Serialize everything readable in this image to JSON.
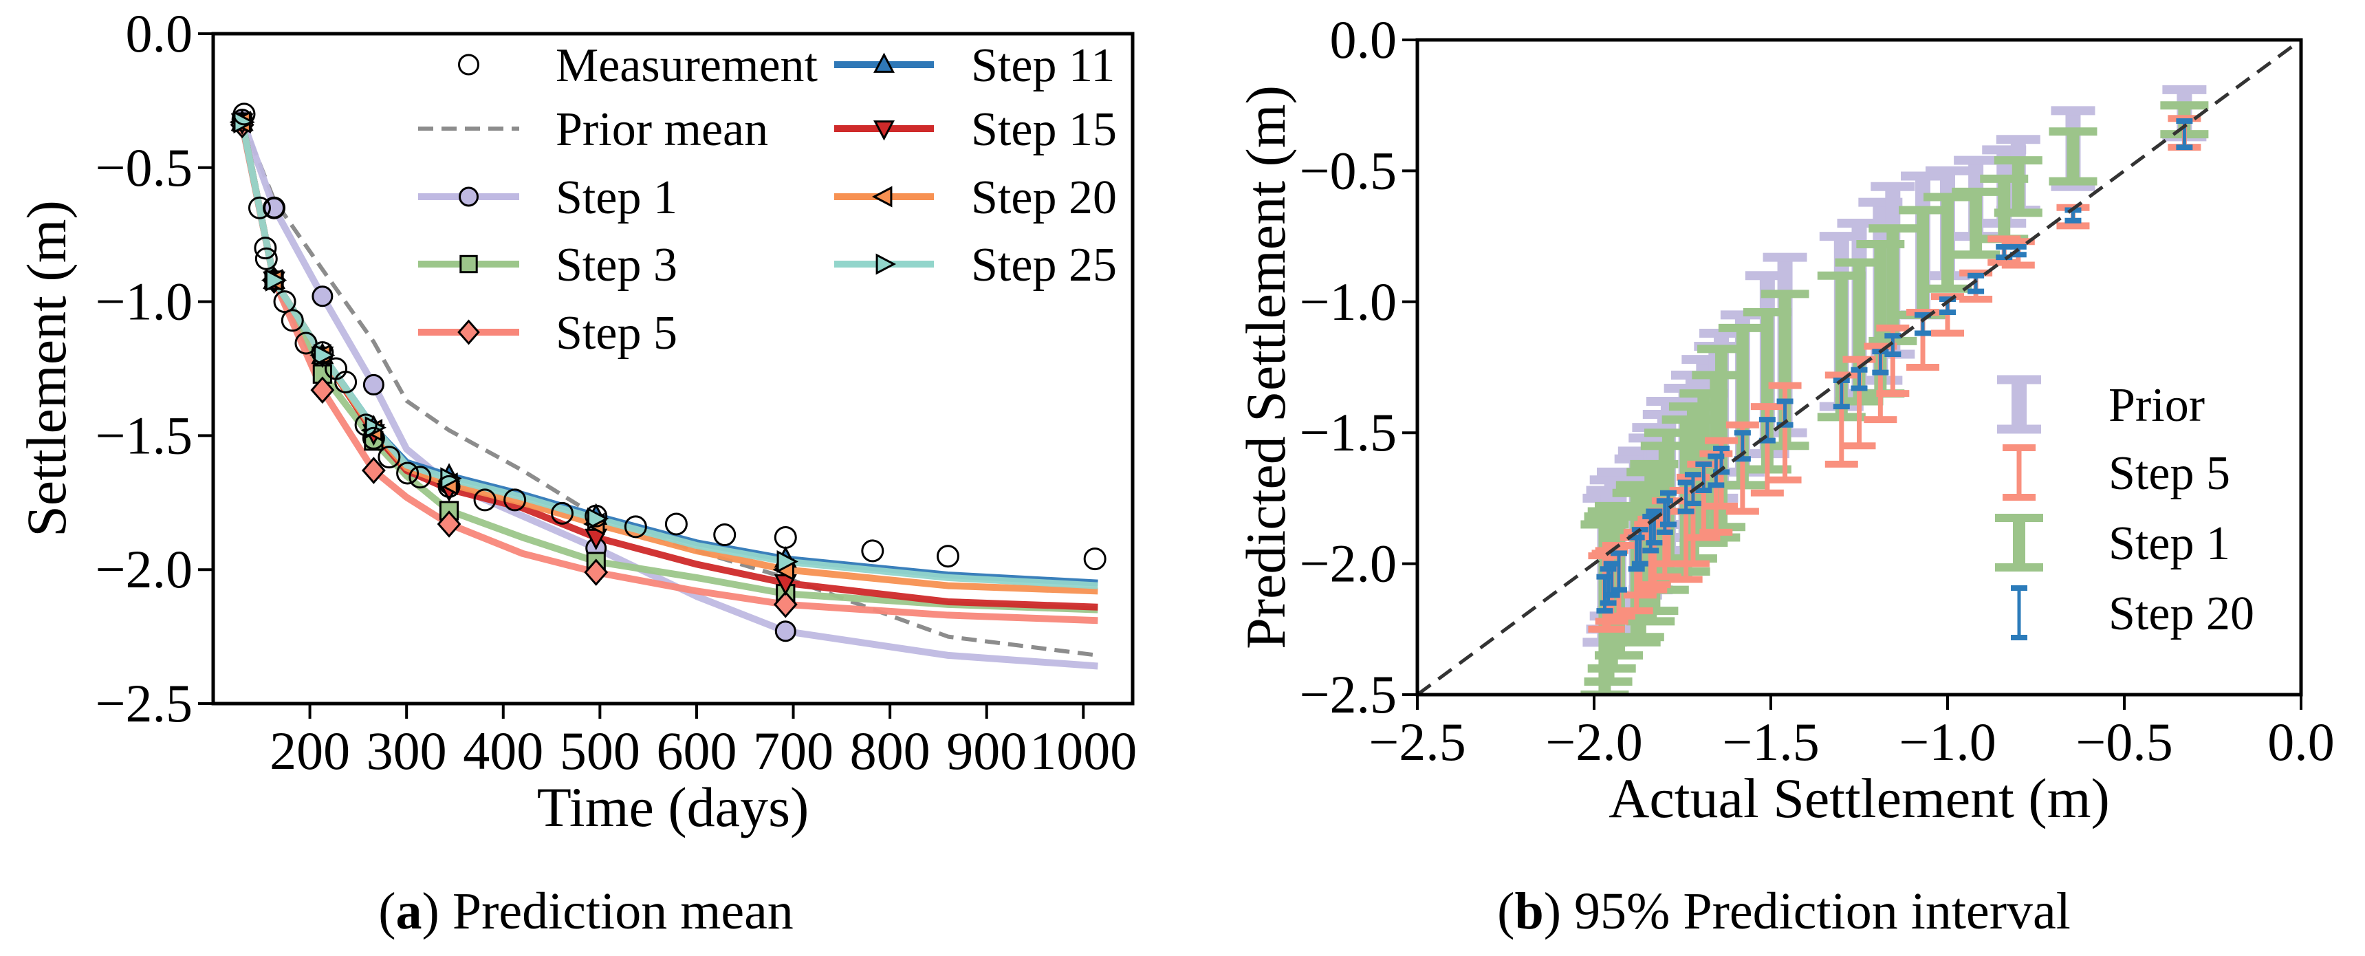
{
  "chart_data": [
    {
      "type": "line",
      "caption": {
        "label": "a",
        "text": " Prediction mean"
      },
      "xlabel": "Time (days)",
      "ylabel": "Settlement (m)",
      "xlim": [
        100,
        1051
      ],
      "ylim": [
        -2.5,
        0
      ],
      "xticks": [
        200,
        300,
        400,
        500,
        600,
        700,
        800,
        900,
        1000
      ],
      "xtick_labels": [
        "200",
        "300",
        "400",
        "500",
        "600",
        "700",
        "800",
        "900",
        "1000"
      ],
      "yticks": [
        0,
        -0.5,
        -1.0,
        -1.5,
        -2.0,
        -2.5
      ],
      "ytick_labels": [
        "0.0",
        "−0.5",
        "−1.0",
        "−1.5",
        "−2.0",
        "−2.5"
      ],
      "legend_position": "top-right",
      "measurement": {
        "name": "Measurement",
        "x": [
          132,
          148,
          163,
          154,
          155,
          174,
          182,
          196,
          213,
          227,
          237,
          258,
          266,
          282,
          301,
          314,
          344,
          381,
          412,
          461,
          496,
          537,
          579,
          629,
          692,
          782,
          860,
          1012
        ],
        "y": [
          -0.3,
          -0.65,
          -0.65,
          -0.8,
          -0.84,
          -1.0,
          -1.07,
          -1.155,
          -1.19,
          -1.25,
          -1.3,
          -1.46,
          -1.51,
          -1.58,
          -1.64,
          -1.655,
          -1.69,
          -1.74,
          -1.74,
          -1.79,
          -1.8,
          -1.84,
          -1.83,
          -1.87,
          -1.88,
          -1.93,
          -1.95,
          -1.96
        ]
      },
      "x": [
        130,
        163,
        213,
        266,
        300,
        344,
        420,
        496,
        600,
        692,
        860,
        1015
      ],
      "marker_days": [
        130,
        163,
        213,
        266,
        344,
        496,
        692
      ],
      "series": [
        {
          "name": "Prior mean",
          "color": "#8c8c8c",
          "marker": "none",
          "dashed": true,
          "y": [
            -0.32,
            -0.62,
            -0.88,
            -1.15,
            -1.37,
            -1.48,
            -1.63,
            -1.8,
            -1.93,
            -2.03,
            -2.25,
            -2.32
          ]
        },
        {
          "name": "Step 1",
          "color": "#bfb9e2",
          "marker": "circle",
          "dashed": false,
          "y": [
            -0.32,
            -0.65,
            -0.98,
            -1.31,
            -1.55,
            -1.68,
            -1.8,
            -1.92,
            -2.1,
            -2.23,
            -2.32,
            -2.36
          ]
        },
        {
          "name": "Step 3",
          "color": "#9cc68a",
          "marker": "square",
          "dashed": false,
          "y": [
            -0.33,
            -0.92,
            -1.27,
            -1.52,
            -1.65,
            -1.78,
            -1.88,
            -1.97,
            -2.03,
            -2.09,
            -2.13,
            -2.15
          ]
        },
        {
          "name": "Step 5",
          "color": "#f8877a",
          "marker": "diamond",
          "dashed": false,
          "y": [
            -0.34,
            -0.92,
            -1.33,
            -1.63,
            -1.73,
            -1.83,
            -1.94,
            -2.01,
            -2.08,
            -2.13,
            -2.17,
            -2.19
          ]
        },
        {
          "name": "Step 11",
          "color": "#2f78b7",
          "marker": "triangle-up",
          "dashed": false,
          "y": [
            -0.33,
            -0.92,
            -1.2,
            -1.47,
            -1.6,
            -1.65,
            -1.72,
            -1.8,
            -1.9,
            -1.96,
            -2.02,
            -2.05
          ]
        },
        {
          "name": "Step 15",
          "color": "#cf2a2a",
          "marker": "triangle-down",
          "dashed": false,
          "y": [
            -0.33,
            -0.92,
            -1.2,
            -1.49,
            -1.63,
            -1.7,
            -1.77,
            -1.88,
            -1.98,
            -2.05,
            -2.12,
            -2.14
          ]
        },
        {
          "name": "Step 20",
          "color": "#f79152",
          "marker": "triangle-left",
          "dashed": false,
          "y": [
            -0.33,
            -0.92,
            -1.2,
            -1.48,
            -1.62,
            -1.68,
            -1.75,
            -1.83,
            -1.93,
            -2.0,
            -2.06,
            -2.08
          ]
        },
        {
          "name": "Step 25",
          "color": "#92d5cb",
          "marker": "triangle-right",
          "dashed": false,
          "y": [
            -0.33,
            -0.92,
            -1.2,
            -1.47,
            -1.61,
            -1.66,
            -1.73,
            -1.81,
            -1.91,
            -1.97,
            -2.03,
            -2.06
          ]
        }
      ]
    },
    {
      "type": "errorbar",
      "caption": {
        "label": "b",
        "text": " 95% Prediction interval"
      },
      "xlabel": "Actual Settlement (m)",
      "ylabel": "Predicted Settlement (m)",
      "xlim": [
        -2.5,
        0
      ],
      "ylim": [
        -2.5,
        0
      ],
      "xticks": [
        -2.5,
        -2.0,
        -1.5,
        -1.0,
        -0.5,
        0
      ],
      "xtick_labels": [
        "−2.5",
        "−2.0",
        "−1.5",
        "−1.0",
        "−0.5",
        "0.0"
      ],
      "yticks": [
        0,
        -0.5,
        -1.0,
        -1.5,
        -2.0,
        -2.5
      ],
      "ytick_labels": [
        "0.0",
        "−0.5",
        "−1.0",
        "−1.5",
        "−2.0",
        "−2.5"
      ],
      "reference_line": "y = x",
      "legend_position": "lower-right",
      "actual": [
        -1.97,
        -1.96,
        -1.95,
        -1.93,
        -1.88,
        -1.87,
        -1.84,
        -1.83,
        -1.8,
        -1.79,
        -1.74,
        -1.72,
        -1.69,
        -1.655,
        -1.64,
        -1.58,
        -1.51,
        -1.46,
        -1.3,
        -1.25,
        -1.19,
        -1.155,
        -1.07,
        -1.0,
        -0.92,
        -0.84,
        -0.8,
        -0.645,
        -0.33
      ],
      "series": [
        {
          "name": "Prior",
          "color": "#c3bde0",
          "intervals": [
            [
              -2.3,
              -1.75
            ],
            [
              -2.25,
              -1.72
            ],
            [
              -2.2,
              -1.68
            ],
            [
              -2.18,
              -1.65
            ],
            [
              -2.15,
              -1.6
            ],
            [
              -2.12,
              -1.57
            ],
            [
              -2.1,
              -1.52
            ],
            [
              -2.05,
              -1.48
            ],
            [
              -2.0,
              -1.43
            ],
            [
              -1.95,
              -1.38
            ],
            [
              -1.9,
              -1.33
            ],
            [
              -1.85,
              -1.28
            ],
            [
              -1.8,
              -1.22
            ],
            [
              -1.75,
              -1.17
            ],
            [
              -1.7,
              -1.12
            ],
            [
              -1.65,
              -1.05
            ],
            [
              -1.58,
              -0.9
            ],
            [
              -1.5,
              -0.83
            ],
            [
              -1.4,
              -0.75
            ],
            [
              -1.35,
              -0.7
            ],
            [
              -1.3,
              -0.62
            ],
            [
              -1.2,
              -0.56
            ],
            [
              -1.05,
              -0.52
            ],
            [
              -0.9,
              -0.5
            ],
            [
              -0.75,
              -0.46
            ],
            [
              -0.7,
              -0.42
            ],
            [
              -0.65,
              -0.38
            ],
            [
              -0.56,
              -0.27
            ],
            [
              -0.37,
              -0.19
            ]
          ]
        },
        {
          "name": "Step 1",
          "color": "#9cc48a",
          "intervals": [
            [
              -2.5,
              -1.85
            ],
            [
              -2.45,
              -1.82
            ],
            [
              -2.4,
              -1.8
            ],
            [
              -2.35,
              -1.78
            ],
            [
              -2.3,
              -1.73
            ],
            [
              -2.28,
              -1.7
            ],
            [
              -2.22,
              -1.65
            ],
            [
              -2.18,
              -1.62
            ],
            [
              -2.1,
              -1.55
            ],
            [
              -2.05,
              -1.5
            ],
            [
              -2.03,
              -1.45
            ],
            [
              -1.98,
              -1.4
            ],
            [
              -1.92,
              -1.35
            ],
            [
              -1.9,
              -1.28
            ],
            [
              -1.86,
              -1.18
            ],
            [
              -1.7,
              -1.1
            ],
            [
              -1.64,
              -1.04
            ],
            [
              -1.55,
              -0.97
            ],
            [
              -1.44,
              -0.9
            ],
            [
              -1.38,
              -0.85
            ],
            [
              -1.35,
              -0.78
            ],
            [
              -1.15,
              -0.72
            ],
            [
              -1.05,
              -0.65
            ],
            [
              -0.95,
              -0.6
            ],
            [
              -0.82,
              -0.58
            ],
            [
              -0.76,
              -0.53
            ],
            [
              -0.66,
              -0.46
            ],
            [
              -0.54,
              -0.35
            ],
            [
              -0.36,
              -0.25
            ]
          ]
        },
        {
          "name": "Step 5",
          "color": "#f9907e",
          "intervals": [
            [
              -2.25,
              -1.97
            ],
            [
              -2.25,
              -1.96
            ],
            [
              -2.22,
              -1.95
            ],
            [
              -2.2,
              -1.93
            ],
            [
              -2.18,
              -1.9
            ],
            [
              -2.12,
              -1.88
            ],
            [
              -2.1,
              -1.85
            ],
            [
              -2.08,
              -1.83
            ],
            [
              -2.05,
              -1.8
            ],
            [
              -2.0,
              -1.76
            ],
            [
              -2.06,
              -1.72
            ],
            [
              -2.0,
              -1.67
            ],
            [
              -1.9,
              -1.62
            ],
            [
              -1.88,
              -1.58
            ],
            [
              -1.78,
              -1.53
            ],
            [
              -1.8,
              -1.47
            ],
            [
              -1.73,
              -1.4
            ],
            [
              -1.68,
              -1.32
            ],
            [
              -1.62,
              -1.28
            ],
            [
              -1.55,
              -1.22
            ],
            [
              -1.45,
              -1.17
            ],
            [
              -1.35,
              -1.1
            ],
            [
              -1.25,
              -1.04
            ],
            [
              -1.12,
              -0.98
            ],
            [
              -0.99,
              -0.89
            ],
            [
              -0.85,
              -0.76
            ],
            [
              -0.86,
              -0.77
            ],
            [
              -0.71,
              -0.64
            ],
            [
              -0.41,
              -0.3
            ]
          ]
        },
        {
          "name": "Step 20",
          "color": "#2b7bba",
          "intervals": [
            [
              -2.18,
              -2.05
            ],
            [
              -2.15,
              -2.02
            ],
            [
              -2.12,
              -2.0
            ],
            [
              -2.1,
              -1.96
            ],
            [
              -2.02,
              -1.9
            ],
            [
              -2.0,
              -1.87
            ],
            [
              -1.95,
              -1.82
            ],
            [
              -1.92,
              -1.8
            ],
            [
              -1.88,
              -1.76
            ],
            [
              -1.85,
              -1.73
            ],
            [
              -1.8,
              -1.69
            ],
            [
              -1.77,
              -1.66
            ],
            [
              -1.72,
              -1.62
            ],
            [
              -1.7,
              -1.59
            ],
            [
              -1.65,
              -1.56
            ],
            [
              -1.6,
              -1.5
            ],
            [
              -1.53,
              -1.45
            ],
            [
              -1.47,
              -1.38
            ],
            [
              -1.4,
              -1.3
            ],
            [
              -1.33,
              -1.26
            ],
            [
              -1.27,
              -1.19
            ],
            [
              -1.2,
              -1.13
            ],
            [
              -1.12,
              -1.05
            ],
            [
              -1.04,
              -0.99
            ],
            [
              -0.96,
              -0.9
            ],
            [
              -0.83,
              -0.79
            ],
            [
              -0.82,
              -0.79
            ],
            [
              -0.69,
              -0.65
            ],
            [
              -0.41,
              -0.31
            ]
          ]
        }
      ],
      "legend_order": [
        0,
        2,
        1,
        3
      ]
    }
  ]
}
